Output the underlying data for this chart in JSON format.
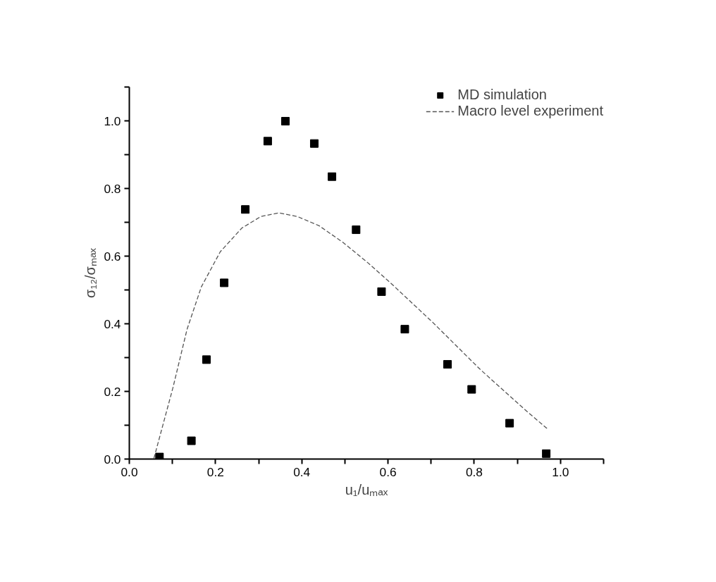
{
  "chart_data": {
    "type": "scatter",
    "xlabel": "u₁/uₘₐₓ",
    "ylabel": "σ₁₂/σₘₐₓ",
    "xlim": [
      0,
      1.1
    ],
    "ylim": [
      0,
      1.1
    ],
    "xticks": [
      {
        "value": 0,
        "label": "0.0"
      },
      {
        "value": 0.1,
        "label": null
      },
      0.2,
      {
        "value": 0.3,
        "label": null
      },
      0.4,
      {
        "value": 0.5,
        "label": null
      },
      0.6,
      {
        "value": 0.7,
        "label": null
      },
      0.8,
      {
        "value": 0.9,
        "label": null
      },
      {
        "value": 1,
        "label": "1.0"
      },
      {
        "value": 1.1,
        "label": null
      }
    ],
    "yticks": [
      {
        "value": 0,
        "label": "0.0"
      },
      {
        "value": 0.1,
        "label": null
      },
      0.2,
      {
        "value": 0.3,
        "label": null
      },
      0.4,
      {
        "value": 0.5,
        "label": null
      },
      0.6,
      {
        "value": 0.7,
        "label": null
      },
      0.8,
      {
        "value": 0.9,
        "label": null
      },
      {
        "value": 1,
        "label": "1.0"
      },
      {
        "value": 1.1,
        "label": null
      }
    ],
    "grid": false,
    "legend": "top right",
    "series": [
      {
        "name": "MD simulation",
        "color": "#000000",
        "marker": "square",
        "x": [
          0.07,
          0.144,
          0.179,
          0.22,
          0.269,
          0.321,
          0.362,
          0.429,
          0.47,
          0.526,
          0.585,
          0.639,
          0.738,
          0.794,
          0.882,
          0.967
        ],
        "values": [
          0.006,
          0.054,
          0.294,
          0.521,
          0.738,
          0.94,
          0.999,
          0.933,
          0.835,
          0.678,
          0.495,
          0.384,
          0.28,
          0.206,
          0.106,
          0.016
        ]
      },
      {
        "name": "Macro level experiment",
        "type": "line",
        "color": "#555555",
        "line_style": "dashed",
        "x": [
          0.057,
          0.101,
          0.134,
          0.167,
          0.211,
          0.261,
          0.305,
          0.347,
          0.39,
          0.44,
          0.495,
          0.549,
          0.604,
          0.703,
          0.813,
          0.922,
          0.97
        ],
        "values": [
          0.002,
          0.21,
          0.384,
          0.509,
          0.613,
          0.683,
          0.717,
          0.728,
          0.717,
          0.69,
          0.641,
          0.585,
          0.523,
          0.405,
          0.266,
          0.141,
          0.089
        ]
      }
    ]
  }
}
